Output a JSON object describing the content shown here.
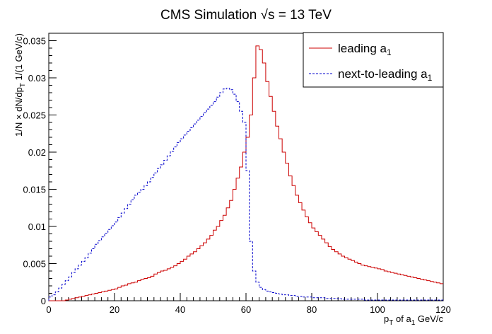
{
  "chart_data": {
    "type": "line",
    "step": true,
    "title": "CMS Simulation √s = 13 TeV",
    "xlabel": "p_T of a_1 GeV/c",
    "ylabel": "1/N × dN/dp_T 1/(1 GeV/c)",
    "xlim": [
      0,
      120
    ],
    "ylim": [
      0,
      0.036
    ],
    "bin_width": 1,
    "x_ticks": [
      "0",
      "20",
      "40",
      "60",
      "80",
      "100",
      "120"
    ],
    "y_ticks": [
      "0",
      "0.005",
      "0.01",
      "0.015",
      "0.02",
      "0.025",
      "0.03",
      "0.035"
    ],
    "legend_position": "top-right",
    "series": [
      {
        "name": "leading a_1",
        "color": "#cc0000",
        "style": "solid",
        "values": [
          0.0,
          0.0,
          0.0,
          0.0,
          0.0,
          0.0001,
          0.0002,
          0.0003,
          0.0004,
          0.0005,
          0.0006,
          0.0007,
          0.0008,
          0.0009,
          0.001,
          0.0011,
          0.0012,
          0.0013,
          0.0014,
          0.0015,
          0.0016,
          0.0018,
          0.002,
          0.0021,
          0.0023,
          0.0024,
          0.0025,
          0.0027,
          0.0029,
          0.003,
          0.0031,
          0.0033,
          0.0036,
          0.0038,
          0.004,
          0.0041,
          0.0043,
          0.0045,
          0.0047,
          0.005,
          0.0053,
          0.0056,
          0.006,
          0.0063,
          0.0066,
          0.007,
          0.0074,
          0.0078,
          0.0083,
          0.0088,
          0.0095,
          0.01,
          0.0108,
          0.0115,
          0.0125,
          0.0135,
          0.015,
          0.0165,
          0.018,
          0.02,
          0.022,
          0.025,
          0.03,
          0.0343,
          0.0338,
          0.032,
          0.0295,
          0.0275,
          0.0255,
          0.0235,
          0.0218,
          0.02,
          0.0185,
          0.0168,
          0.0155,
          0.0142,
          0.0132,
          0.0122,
          0.0113,
          0.0105,
          0.0098,
          0.0093,
          0.0088,
          0.0083,
          0.0078,
          0.0073,
          0.0069,
          0.0066,
          0.0063,
          0.006,
          0.0058,
          0.0056,
          0.0054,
          0.0052,
          0.005,
          0.0048,
          0.0047,
          0.0046,
          0.0045,
          0.0044,
          0.0043,
          0.0042,
          0.004,
          0.0039,
          0.0038,
          0.0037,
          0.0036,
          0.0035,
          0.0034,
          0.0033,
          0.0032,
          0.0031,
          0.003,
          0.0029,
          0.0028,
          0.0027,
          0.0026,
          0.0025,
          0.0024,
          0.0023
        ]
      },
      {
        "name": "next-to-leading a_1",
        "color": "#0000cc",
        "style": "dashed",
        "values": [
          0.0005,
          0.0008,
          0.0012,
          0.0017,
          0.0022,
          0.0027,
          0.0032,
          0.0038,
          0.0043,
          0.0048,
          0.0053,
          0.0058,
          0.0064,
          0.007,
          0.0076,
          0.0081,
          0.0086,
          0.0091,
          0.0096,
          0.0101,
          0.0106,
          0.0112,
          0.0118,
          0.0124,
          0.013,
          0.0136,
          0.0142,
          0.0146,
          0.015,
          0.0155,
          0.016,
          0.0166,
          0.0172,
          0.0178,
          0.0183,
          0.0189,
          0.0195,
          0.0201,
          0.0207,
          0.0213,
          0.0218,
          0.0223,
          0.0228,
          0.0233,
          0.0238,
          0.0243,
          0.0248,
          0.0253,
          0.0258,
          0.0263,
          0.0268,
          0.0274,
          0.028,
          0.0285,
          0.0286,
          0.0284,
          0.0278,
          0.0268,
          0.0255,
          0.024,
          0.0175,
          0.008,
          0.004,
          0.0025,
          0.0018,
          0.0015,
          0.0013,
          0.0012,
          0.0011,
          0.001,
          0.0009,
          0.0008,
          0.0008,
          0.0007,
          0.0007,
          0.0006,
          0.0006,
          0.0005,
          0.0005,
          0.0005,
          0.0004,
          0.0004,
          0.0004,
          0.0004,
          0.0003,
          0.0003,
          0.0003,
          0.0003,
          0.0003,
          0.0002,
          0.0002,
          0.0002,
          0.0002,
          0.0002,
          0.0002,
          0.0002,
          0.0001,
          0.0001,
          0.0001,
          0.0001,
          0.0001,
          0.0001,
          0.0001,
          0.0001,
          0.0001,
          0.0001,
          0.0001,
          0.0001,
          0.0001,
          0.0001,
          0.0001,
          0.0001,
          0.0001,
          0.0001,
          0.0001,
          0.0001,
          0.0001,
          0.0001,
          0.0001,
          0.0001
        ]
      }
    ]
  }
}
